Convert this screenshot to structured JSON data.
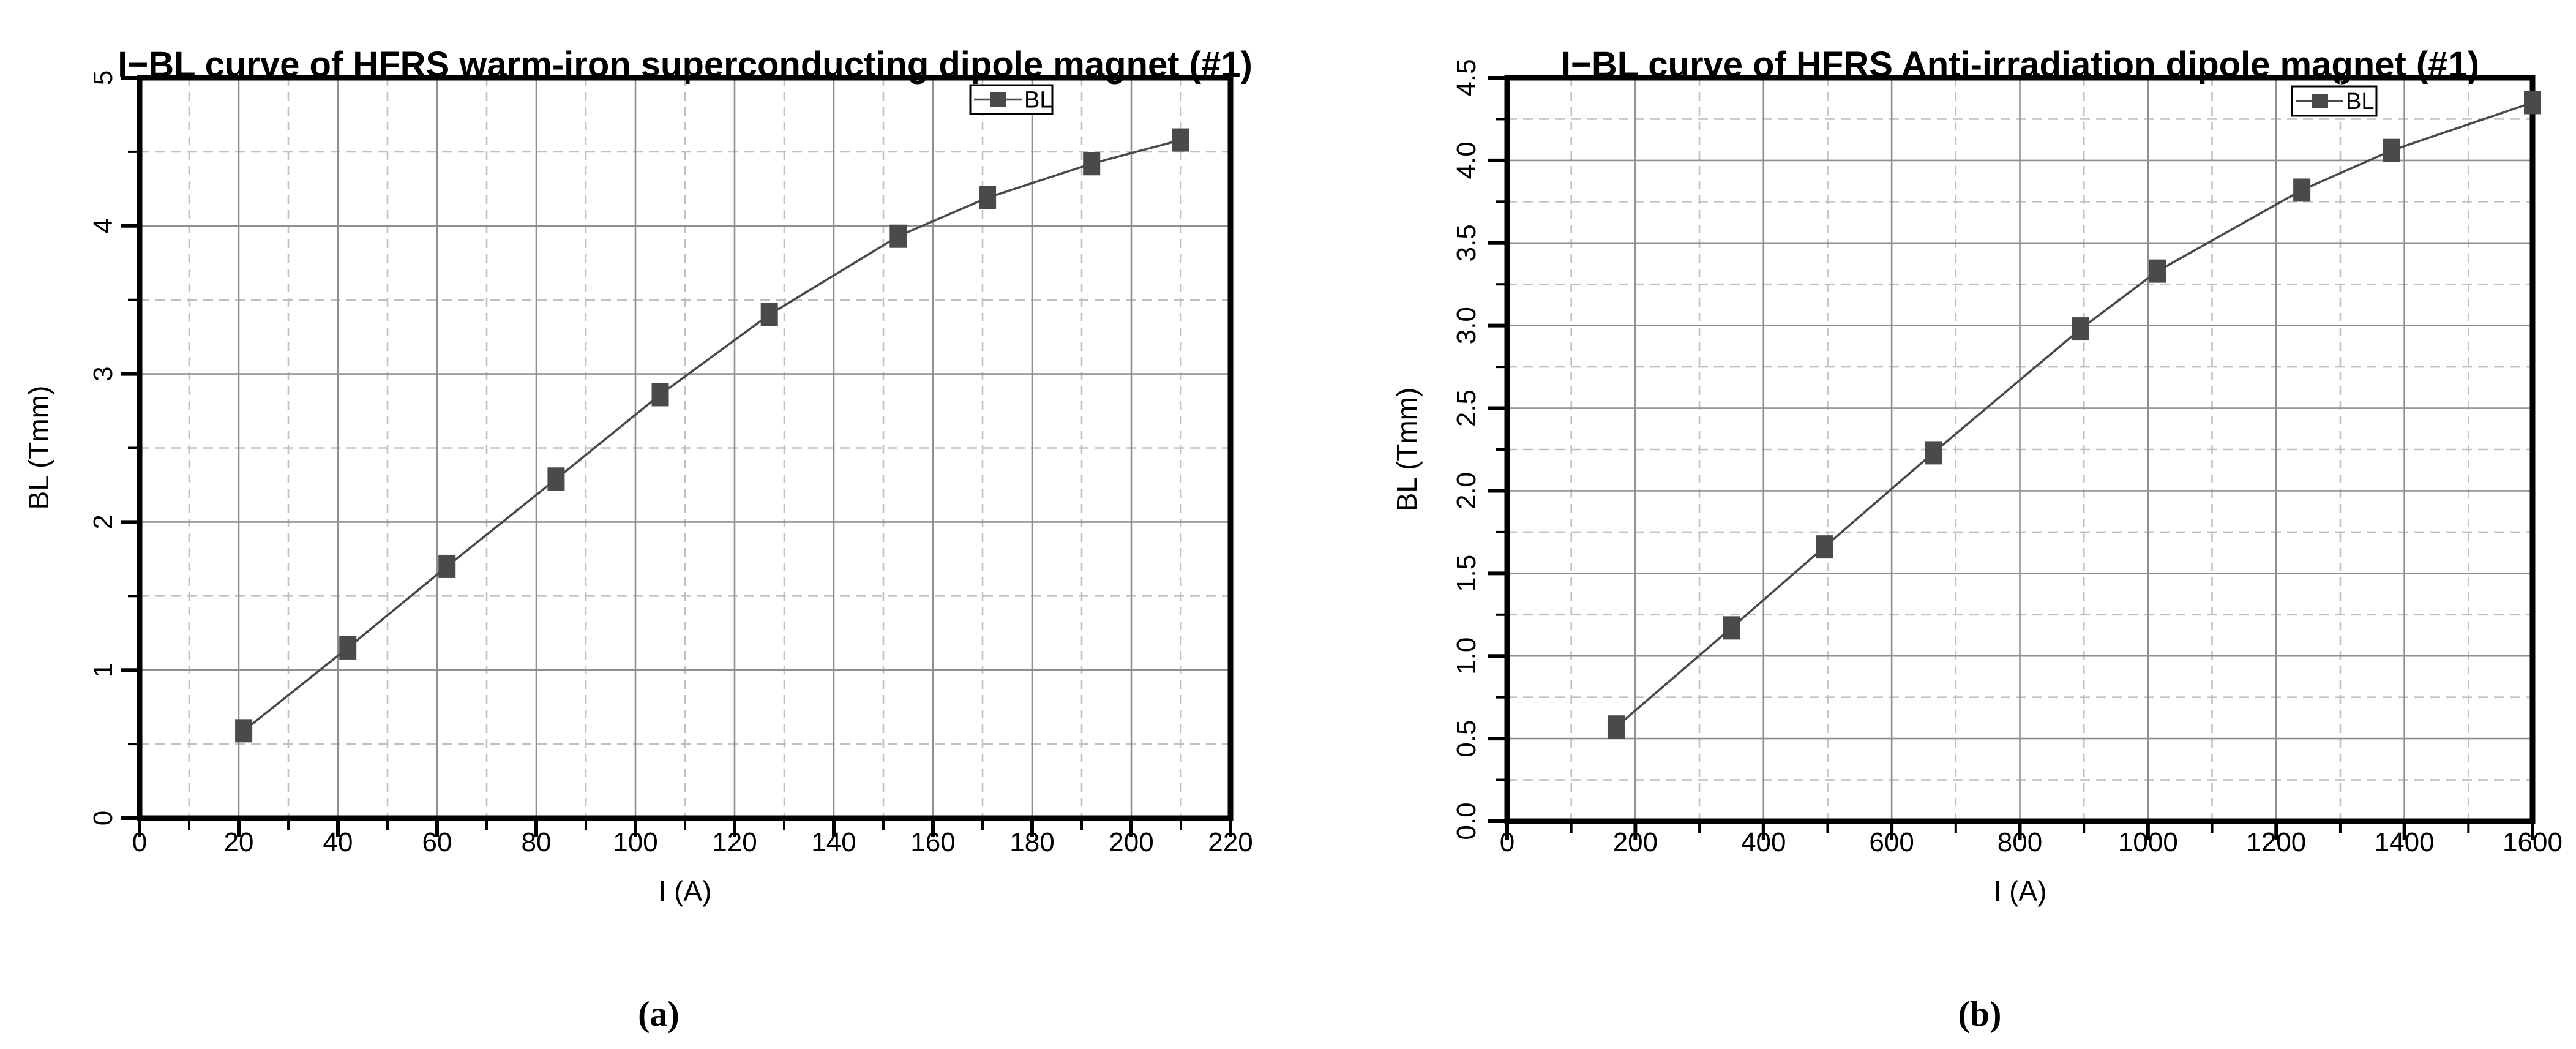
{
  "figure": {
    "background": "#ffffff",
    "panels": [
      {
        "caption": "(a)"
      },
      {
        "caption": "(b)"
      }
    ]
  },
  "chart_data": [
    {
      "type": "line",
      "title": "I−BL curve of HFRS warm-iron superconducting dipole magnet (#1)",
      "xlabel": "I (A)",
      "ylabel": "BL (Tmm)",
      "legend": [
        "BL"
      ],
      "legend_position": "top-right-inset",
      "xlim": [
        0,
        220
      ],
      "ylim": [
        0,
        5
      ],
      "x_major_step": 20,
      "x_minor_step": 10,
      "y_major_step": 1,
      "y_minor_step": 0.5,
      "x_tick_labels": [
        "0",
        "20",
        "40",
        "60",
        "80",
        "100",
        "120",
        "140",
        "160",
        "180",
        "200",
        "220"
      ],
      "y_tick_labels": [
        "0",
        "1",
        "2",
        "3",
        "4",
        "5"
      ],
      "grid": {
        "major": "solid",
        "minor": "dashed"
      },
      "series": [
        {
          "name": "BL",
          "marker": "square",
          "x": [
            21,
            42,
            62,
            84,
            105,
            127,
            153,
            171,
            192,
            210
          ],
          "y": [
            0.59,
            1.15,
            1.7,
            2.29,
            2.86,
            3.4,
            3.93,
            4.19,
            4.42,
            4.58
          ]
        }
      ]
    },
    {
      "type": "line",
      "title": "I−BL curve of HFRS Anti-irradiation dipole magnet (#1)",
      "xlabel": "I (A)",
      "ylabel": "BL (Tmm)",
      "legend": [
        "BL"
      ],
      "legend_position": "top-right-inset",
      "xlim": [
        0,
        1600
      ],
      "ylim": [
        0,
        4.5
      ],
      "x_major_step": 200,
      "x_minor_step": 100,
      "y_major_step": 0.5,
      "y_minor_step": 0.25,
      "x_tick_labels": [
        "0",
        "200",
        "400",
        "600",
        "800",
        "1000",
        "1200",
        "1400",
        "1600"
      ],
      "y_tick_labels": [
        "0.0",
        "0.5",
        "1.0",
        "1.5",
        "2.0",
        "2.5",
        "3.0",
        "3.5",
        "4.0",
        "4.5"
      ],
      "grid": {
        "major": "solid",
        "minor": "dashed"
      },
      "series": [
        {
          "name": "BL",
          "marker": "square",
          "x": [
            170,
            350,
            495,
            665,
            895,
            1015,
            1240,
            1380,
            1600
          ],
          "y": [
            0.57,
            1.17,
            1.66,
            2.23,
            2.98,
            3.33,
            3.82,
            4.06,
            4.35
          ]
        }
      ]
    }
  ],
  "style": {
    "curve_color": "#4a4a4a",
    "marker_color": "#4a4a4a",
    "grid_major_color": "#8f8f8f",
    "grid_minor_color": "#c0c0c0",
    "axis_color": "#000000",
    "text_color": "#000000",
    "legend_border_color": "#000000",
    "legend_background": "#ffffff"
  }
}
